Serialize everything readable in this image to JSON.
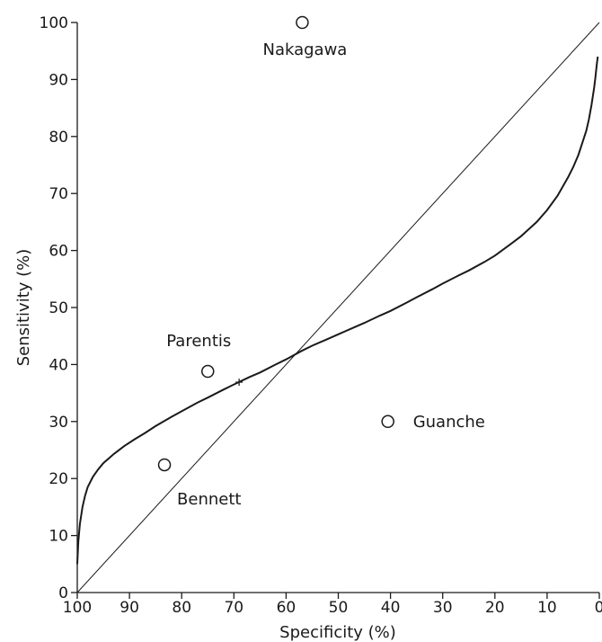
{
  "chart_data": {
    "type": "scatter",
    "title": "",
    "xlabel": "Specificity (%)",
    "ylabel": "Sensitivity (%)",
    "x_reversed": true,
    "xlim": [
      0,
      100
    ],
    "ylim": [
      0,
      100
    ],
    "x_ticks": [
      100,
      90,
      80,
      70,
      60,
      50,
      40,
      30,
      20,
      10,
      0
    ],
    "y_ticks": [
      0,
      10,
      20,
      30,
      40,
      50,
      60,
      70,
      80,
      90,
      100
    ],
    "grid": false,
    "legend": "none",
    "points": [
      {
        "label": "Nakagawa",
        "x": 56.9,
        "y": 100
      },
      {
        "label": "Parentis",
        "x": 75,
        "y": 38.8
      },
      {
        "label": "Bennett",
        "x": 83.3,
        "y": 22.4
      },
      {
        "label": "Guanche",
        "x": 40.5,
        "y": 30
      }
    ],
    "reference_line": {
      "x": [
        100,
        0
      ],
      "y": [
        0,
        100
      ]
    },
    "curve": {
      "x": [
        100,
        99.8,
        99.5,
        99,
        98.5,
        98,
        97,
        96,
        95,
        93,
        91,
        89,
        87,
        85,
        82,
        80,
        77,
        75,
        72,
        70,
        67,
        65,
        62,
        60,
        57,
        55,
        52,
        50,
        47,
        45,
        42,
        40,
        37,
        35,
        32,
        30,
        27,
        25,
        22,
        20,
        17,
        15,
        12,
        10,
        8,
        6,
        5,
        4,
        3,
        2.5,
        2,
        1.5,
        1,
        0.8,
        0.5,
        0.3
      ],
      "y": [
        5,
        9,
        12,
        15,
        17,
        18.5,
        20.3,
        21.6,
        22.7,
        24.3,
        25.7,
        26.9,
        28,
        29.2,
        30.8,
        31.8,
        33.3,
        34.2,
        35.6,
        36.5,
        37.8,
        38.6,
        40,
        40.9,
        42.4,
        43.3,
        44.5,
        45.3,
        46.5,
        47.3,
        48.6,
        49.4,
        50.8,
        51.8,
        53.2,
        54.2,
        55.6,
        56.5,
        58,
        59.1,
        61.1,
        62.5,
        65,
        67.1,
        69.6,
        72.8,
        74.6,
        76.8,
        79.6,
        81,
        83,
        85.5,
        88.5,
        90,
        92.5,
        94
      ]
    },
    "marker": {
      "symbol": "+",
      "x": 69,
      "y": 36.9
    }
  }
}
